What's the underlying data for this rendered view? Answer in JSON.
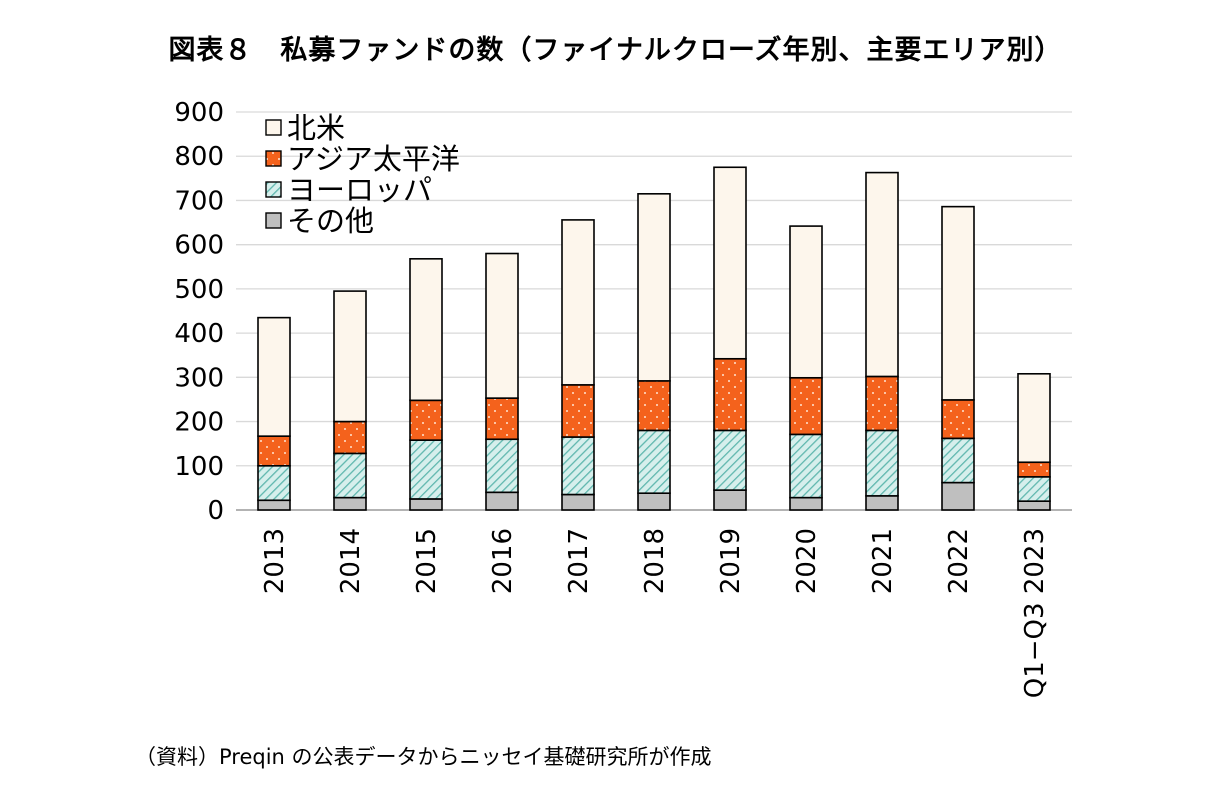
{
  "chart_data": {
    "type": "bar",
    "stacked": true,
    "title": "図表８　私募ファンドの数（ファイナルクローズ年別、主要エリア別）",
    "xlabel": "",
    "ylabel": "",
    "ylim": [
      0,
      900
    ],
    "yticks": [
      "0",
      "100",
      "200",
      "300",
      "400",
      "500",
      "600",
      "700",
      "800",
      "900"
    ],
    "grid": true,
    "legend_position": "top-left",
    "categories": [
      "2013",
      "2014",
      "2015",
      "2016",
      "2017",
      "2018",
      "2019",
      "2020",
      "2021",
      "2022",
      "Q1−Q3 2023"
    ],
    "series": [
      {
        "name": "その他",
        "color": "#bfbfbf",
        "pattern": "solid",
        "values": [
          22,
          28,
          25,
          40,
          35,
          38,
          45,
          28,
          32,
          62,
          20
        ]
      },
      {
        "name": "ヨーロッパ",
        "color": "#a8ddd8",
        "pattern": "hatch",
        "values": [
          78,
          100,
          133,
          120,
          130,
          142,
          135,
          143,
          148,
          100,
          55
        ]
      },
      {
        "name": "アジア太平洋",
        "color": "#f4621c",
        "pattern": "dots",
        "values": [
          67,
          72,
          90,
          93,
          118,
          112,
          162,
          128,
          122,
          87,
          33
        ]
      },
      {
        "name": "北米",
        "color": "#fdf6ec",
        "pattern": "solid",
        "values": [
          268,
          295,
          320,
          327,
          373,
          423,
          433,
          343,
          461,
          437,
          200
        ]
      }
    ],
    "legend_order": [
      "北米",
      "アジア太平洋",
      "ヨーロッパ",
      "その他"
    ]
  },
  "source_note": "（資料）Preqin の公表データからニッセイ基礎研究所が作成"
}
